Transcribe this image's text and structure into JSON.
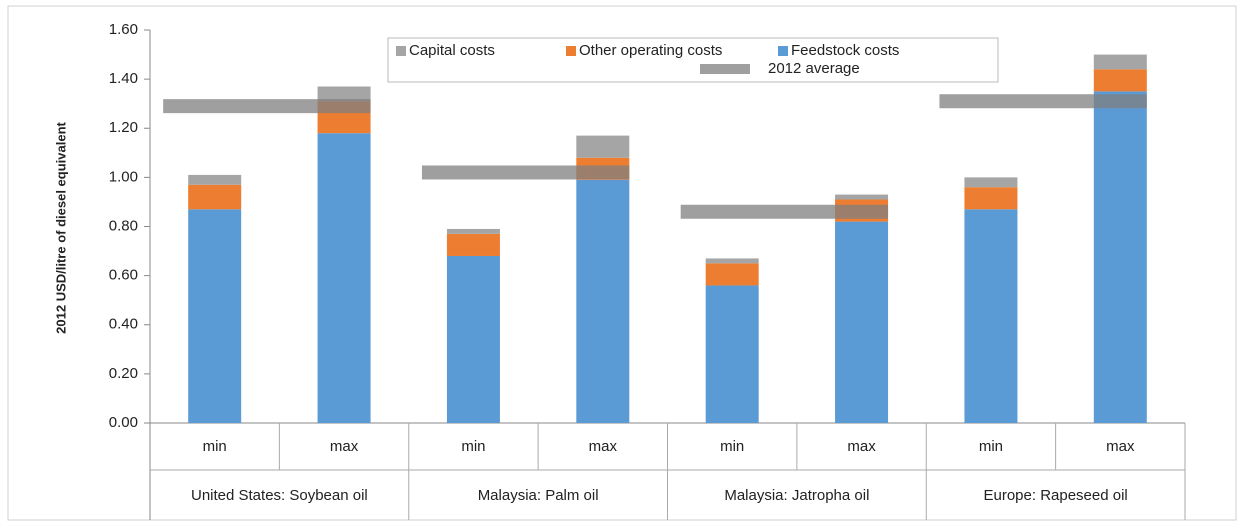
{
  "chart_data": {
    "type": "stacked-bar",
    "ylabel": "2012 USD/litre of diesel equivalent",
    "categories": [
      "min",
      "max",
      "min",
      "max",
      "min",
      "max",
      "min",
      "max"
    ],
    "groups": [
      "United States: Soybean oil",
      "Malaysia: Palm oil",
      "Malaysia: Jatropha oil",
      "Europe: Rapeseed oil"
    ],
    "series": [
      {
        "name": "Feedstock costs",
        "color": "#5b9bd5",
        "values": [
          0.87,
          1.18,
          0.68,
          0.99,
          0.56,
          0.82,
          0.87,
          1.35
        ]
      },
      {
        "name": "Other operating costs",
        "color": "#ed7d31",
        "values": [
          0.1,
          0.13,
          0.09,
          0.09,
          0.09,
          0.09,
          0.09,
          0.09
        ]
      },
      {
        "name": "Capital costs",
        "color": "#a5a5a5",
        "values": [
          0.04,
          0.06,
          0.02,
          0.09,
          0.02,
          0.02,
          0.04,
          0.06
        ]
      }
    ],
    "average": {
      "name": "2012 average",
      "color": "#7f7f7f",
      "values": [
        1.29,
        1.02,
        0.86,
        1.31
      ]
    },
    "ylim": [
      0,
      1.6
    ],
    "yticks": [
      {
        "value": 0,
        "label": "0.00"
      },
      {
        "value": 0.2,
        "label": "0.20"
      },
      {
        "value": 0.4,
        "label": "0.40"
      },
      {
        "value": 0.6,
        "label": "0.60"
      },
      {
        "value": 0.8,
        "label": "0.80"
      },
      {
        "value": 1.0,
        "label": "1.00"
      },
      {
        "value": 1.2,
        "label": "1.20"
      },
      {
        "value": 1.4,
        "label": "1.40"
      },
      {
        "value": 1.6,
        "label": "1.60"
      }
    ]
  }
}
